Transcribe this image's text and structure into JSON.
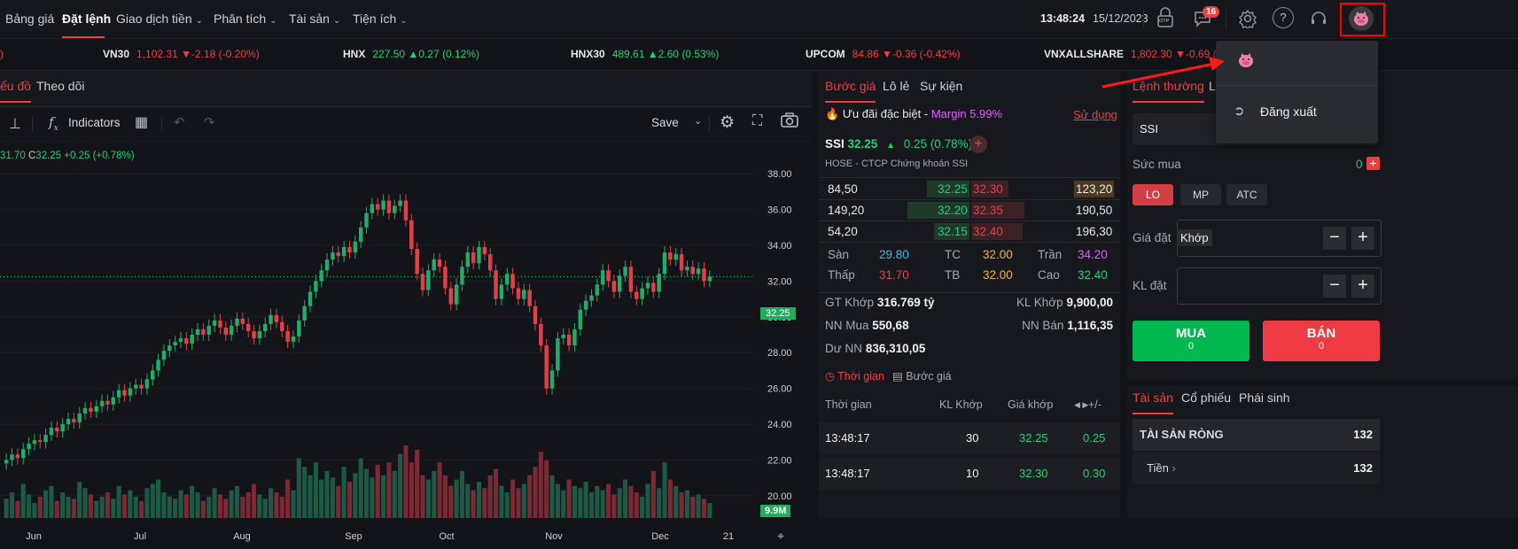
{
  "nav": {
    "items": [
      {
        "label": "Bảng giá"
      },
      {
        "label": "Đặt lệnh"
      },
      {
        "label": "Giao dịch tiền"
      },
      {
        "label": "Phân tích"
      },
      {
        "label": "Tài sản"
      },
      {
        "label": "Tiện ích"
      }
    ],
    "clock": "13:48:24",
    "date": "15/12/2023",
    "otp_label": "OTP",
    "notification_count": "16"
  },
  "ticker": [
    {
      "name": "VN30",
      "value": "1,102.31",
      "change": "-2.18 (-0.20%)",
      "dir": "down"
    },
    {
      "name": "HNX",
      "value": "227.50",
      "change": "0.27 (0.12%)",
      "dir": "up"
    },
    {
      "name": "HNX30",
      "value": "489.61",
      "change": "2.60 (0.53%)",
      "dir": "up"
    },
    {
      "name": "UPCOM",
      "value": "84.86",
      "change": "-0.36 (-0.42%)",
      "dir": "down"
    },
    {
      "name": "VNXALLSHARE",
      "value": "1,802.30",
      "change": "-0.69 (-0.04",
      "dir": "down"
    }
  ],
  "chart_panel": {
    "tabs": [
      "ểu đồ",
      "Theo dõi"
    ],
    "toolbar": {
      "indicators_label": "Indicators",
      "save_label": "Save"
    },
    "ohlc_prefix": "31.70",
    "ohlc_close_label": "C",
    "ohlc_close": "32.25",
    "ohlc_change": "+0.25 (+0.78%)",
    "price_tag": "32.25",
    "volume_tag": "9.9M"
  },
  "chart_data": {
    "type": "candlestick",
    "title": "",
    "ylim": [
      19,
      39
    ],
    "y_ticks": [
      "38.00",
      "36.00",
      "34.00",
      "32.00",
      "30.00",
      "28.00",
      "26.00",
      "24.00",
      "22.00",
      "20.00"
    ],
    "x_ticks": [
      "Jun",
      "Jul",
      "Aug",
      "Sep",
      "Oct",
      "Nov",
      "Dec",
      "21"
    ],
    "last_price": 32.25,
    "closes": [
      22.0,
      22.3,
      22.1,
      22.6,
      22.9,
      23.1,
      23.0,
      23.4,
      23.8,
      23.6,
      24.0,
      24.3,
      24.1,
      24.6,
      24.9,
      24.7,
      25.0,
      25.3,
      25.1,
      25.5,
      25.9,
      25.6,
      26.0,
      26.2,
      26.0,
      26.5,
      27.0,
      27.6,
      28.1,
      28.4,
      28.6,
      28.8,
      28.5,
      29.0,
      29.3,
      29.0,
      29.5,
      29.8,
      29.4,
      29.0,
      29.5,
      29.9,
      29.6,
      29.2,
      28.8,
      29.2,
      29.6,
      30.1,
      29.7,
      29.2,
      28.6,
      28.9,
      29.8,
      30.6,
      31.4,
      32.0,
      32.6,
      33.2,
      33.6,
      33.4,
      33.9,
      33.6,
      34.2,
      35.0,
      35.8,
      36.3,
      36.0,
      36.5,
      35.8,
      36.2,
      36.5,
      35.4,
      33.8,
      32.4,
      31.5,
      32.6,
      33.2,
      32.8,
      31.6,
      30.7,
      31.8,
      32.8,
      33.6,
      33.0,
      33.9,
      33.5,
      32.6,
      31.0,
      31.8,
      32.4,
      31.6,
      31.0,
      31.5,
      30.6,
      29.6,
      28.4,
      26.0,
      27.0,
      28.8,
      29.0,
      28.4,
      29.3,
      30.4,
      30.9,
      31.2,
      31.8,
      32.6,
      32.0,
      31.4,
      32.3,
      32.8,
      31.4,
      31.0,
      31.6,
      31.9,
      31.4,
      32.4,
      33.6,
      33.2,
      33.5,
      32.6,
      32.8,
      32.4,
      32.7,
      32.0,
      32.25
    ],
    "volumes": [
      0.9,
      1.2,
      0.8,
      1.6,
      1.1,
      0.7,
      1.0,
      1.3,
      1.5,
      0.8,
      1.2,
      1.0,
      0.9,
      1.7,
      1.4,
      1.1,
      0.8,
      1.0,
      1.2,
      0.9,
      1.5,
      1.1,
      1.3,
      1.0,
      0.8,
      1.4,
      1.6,
      1.8,
      1.2,
      1.0,
      0.9,
      1.3,
      1.1,
      1.5,
      1.2,
      0.8,
      1.0,
      1.4,
      1.1,
      0.9,
      1.3,
      1.5,
      1.0,
      1.2,
      1.6,
      1.1,
      0.9,
      1.4,
      1.2,
      1.0,
      1.8,
      1.3,
      2.8,
      2.4,
      2.0,
      2.6,
      1.8,
      2.2,
      1.9,
      1.5,
      2.4,
      1.7,
      2.1,
      2.8,
      2.3,
      1.9,
      2.5,
      2.0,
      2.6,
      2.2,
      3.0,
      3.4,
      2.6,
      3.2,
      2.0,
      1.8,
      2.2,
      2.6,
      2.0,
      1.5,
      1.8,
      2.2,
      1.6,
      1.3,
      1.7,
      1.4,
      2.0,
      2.3,
      1.5,
      1.2,
      1.8,
      1.4,
      1.6,
      2.0,
      2.4,
      3.1,
      2.7,
      2.0,
      1.6,
      1.3,
      1.8,
      1.5,
      1.4,
      1.7,
      1.2,
      1.5,
      1.3,
      1.6,
      1.1,
      1.4,
      1.8,
      1.5,
      1.2,
      1.0,
      1.6,
      2.2,
      1.4,
      2.6,
      1.8,
      1.5,
      1.2,
      1.3,
      1.0,
      1.1,
      0.9,
      0.7
    ]
  },
  "price_panel": {
    "tabs": [
      "Bước giá",
      "Lô lẻ",
      "Sự kiện"
    ],
    "promo_label": "Ưu đãi đặc biệt -",
    "promo_value": "Margin 5.99%",
    "promo_link": "Sử dụng",
    "symbol": "SSI",
    "price": "32.25",
    "change": "0.25",
    "change_pct": "(0.78%)",
    "company": "HOSE - CTCP Chứng khoán SSI",
    "book": [
      {
        "bid_vol": "84,50",
        "bid": "32.25",
        "ask": "32.30",
        "ask_vol": "123,20"
      },
      {
        "bid_vol": "149,20",
        "bid": "32.20",
        "ask": "32.35",
        "ask_vol": "190,50"
      },
      {
        "bid_vol": "54,20",
        "bid": "32.15",
        "ask": "32.40",
        "ask_vol": "196,30"
      }
    ],
    "stats": {
      "san_label": "Sàn",
      "san": "29.80",
      "tc_label": "TC",
      "tc": "32.00",
      "tran_label": "Trần",
      "tran": "34.20",
      "thap_label": "Thấp",
      "thap": "31.70",
      "tb_label": "TB",
      "tb": "32.00",
      "cao_label": "Cao",
      "cao": "32.40"
    },
    "gt_khop_label": "GT Khớp",
    "gt_khop": "316.769 tỷ",
    "kl_khop_label": "KL Khớp",
    "kl_khop": "9,900,00",
    "nn_mua_label": "NN Mua",
    "nn_mua": "550,68",
    "nn_ban_label": "NN Bán",
    "nn_ban": "1,116,35",
    "du_nn_label": "Dư NN",
    "du_nn": "836,310,05",
    "subtabs": [
      "Thời gian",
      "Bước giá"
    ],
    "trades_header": [
      "Thời gian",
      "KL Khớp",
      "Giá khớp",
      "+/-"
    ],
    "trades": [
      {
        "time": "13:48:17",
        "vol": "30",
        "price": "32.25",
        "chg": "0.25"
      },
      {
        "time": "13:48:17",
        "vol": "10",
        "price": "32.30",
        "chg": "0.30"
      }
    ]
  },
  "order_panel": {
    "tabs": [
      "Lệnh thường",
      "L"
    ],
    "symbol_value": "SSI",
    "buying_power_label": "Sức mua",
    "buying_power": "0",
    "order_types": [
      "LO",
      "MP",
      "ATC"
    ],
    "price_label": "Giá đặt",
    "price_value": "Khớp",
    "qty_label": "KL đặt",
    "buy_label": "MUA",
    "buy_value": "0",
    "sell_label": "BÁN",
    "sell_value": "0",
    "bottom_tabs": [
      "Tài sản",
      "Cổ phiếu",
      "Phái sinh"
    ],
    "net_assets_label": "TÀI SẢN RÒNG",
    "net_assets_value": "132",
    "cash_label": "Tiền",
    "cash_value": "132"
  },
  "user_menu": {
    "logout_label": "Đăng xuất"
  },
  "colors": {
    "up": "#1fcf7a",
    "down": "#ef3f3f",
    "ref": "#f2b72c",
    "ceiling": "#e35fff",
    "floor": "#3ab7ff",
    "highlight": "#ff0000"
  }
}
